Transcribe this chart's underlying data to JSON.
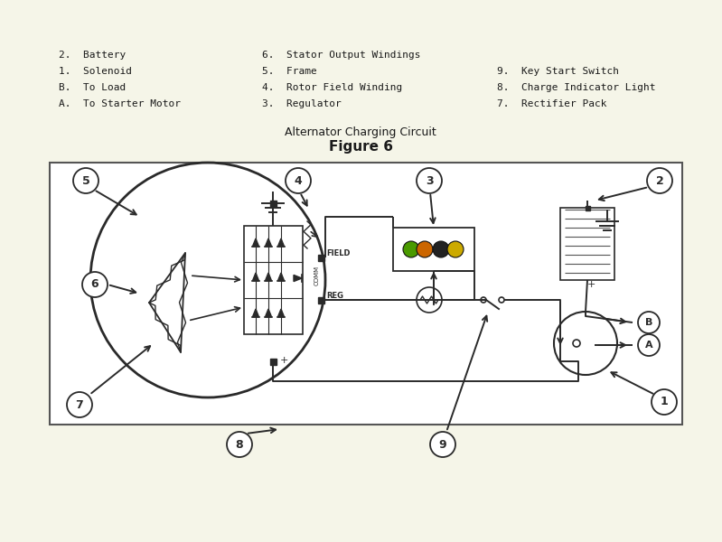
{
  "title": "Figure 6",
  "subtitle": "Alternator Charging Circuit",
  "bg_color": "#f5f5e8",
  "diagram_bg": "#ffffff",
  "line_color": "#2a2a2a",
  "legend_items": [
    "A.  To Starter Motor",
    "B.  To Load",
    "1.  Solenoid",
    "2.  Battery",
    "3.  Regulator",
    "4.  Rotor Field Winding",
    "5.  Frame",
    "6.  Stator Output Windings",
    "7.  Rectifier Pack",
    "8.  Charge Indicator Light",
    "9.  Key Start Switch"
  ],
  "connector_colors": [
    "#4a9a00",
    "#cc6600",
    "#222222",
    "#ccaa00"
  ],
  "diagram_border": "#888888"
}
